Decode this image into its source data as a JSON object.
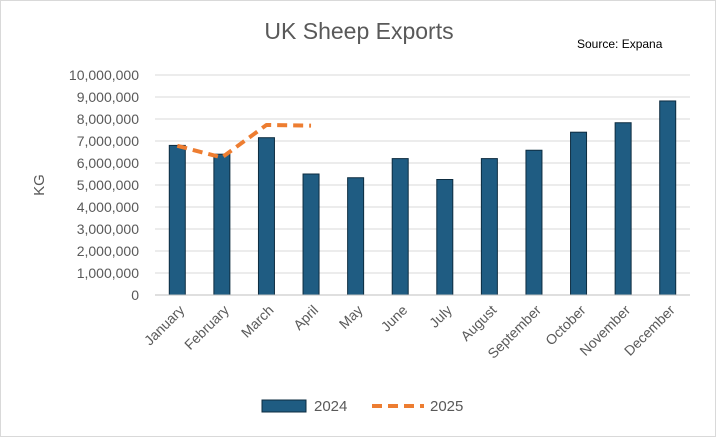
{
  "chart_data": {
    "type": "bar",
    "title": "UK Sheep Exports",
    "subtitle": "Source: Expana",
    "xlabel": "",
    "ylabel": "KG",
    "ylim": [
      0,
      10000000
    ],
    "yticks": [
      "0",
      "1,000,000",
      "2,000,000",
      "3,000,000",
      "4,000,000",
      "5,000,000",
      "6,000,000",
      "7,000,000",
      "8,000,000",
      "9,000,000",
      "10,000,000"
    ],
    "categories": [
      "January",
      "February",
      "March",
      "April",
      "May",
      "June",
      "July",
      "August",
      "September",
      "October",
      "November",
      "December"
    ],
    "series": [
      {
        "name": "2024",
        "kind": "bar",
        "color": "#1f5c82",
        "values": [
          6800000,
          6400000,
          7150000,
          5500000,
          5330000,
          6200000,
          5250000,
          6200000,
          6580000,
          7400000,
          7830000,
          8820000
        ]
      },
      {
        "name": "2025",
        "kind": "line-dashed",
        "color": "#ed7d31",
        "values": [
          6780000,
          6250000,
          7730000,
          7700000,
          null,
          null,
          null,
          null,
          null,
          null,
          null,
          null
        ]
      }
    ],
    "grid": true,
    "legend": "bottom"
  }
}
